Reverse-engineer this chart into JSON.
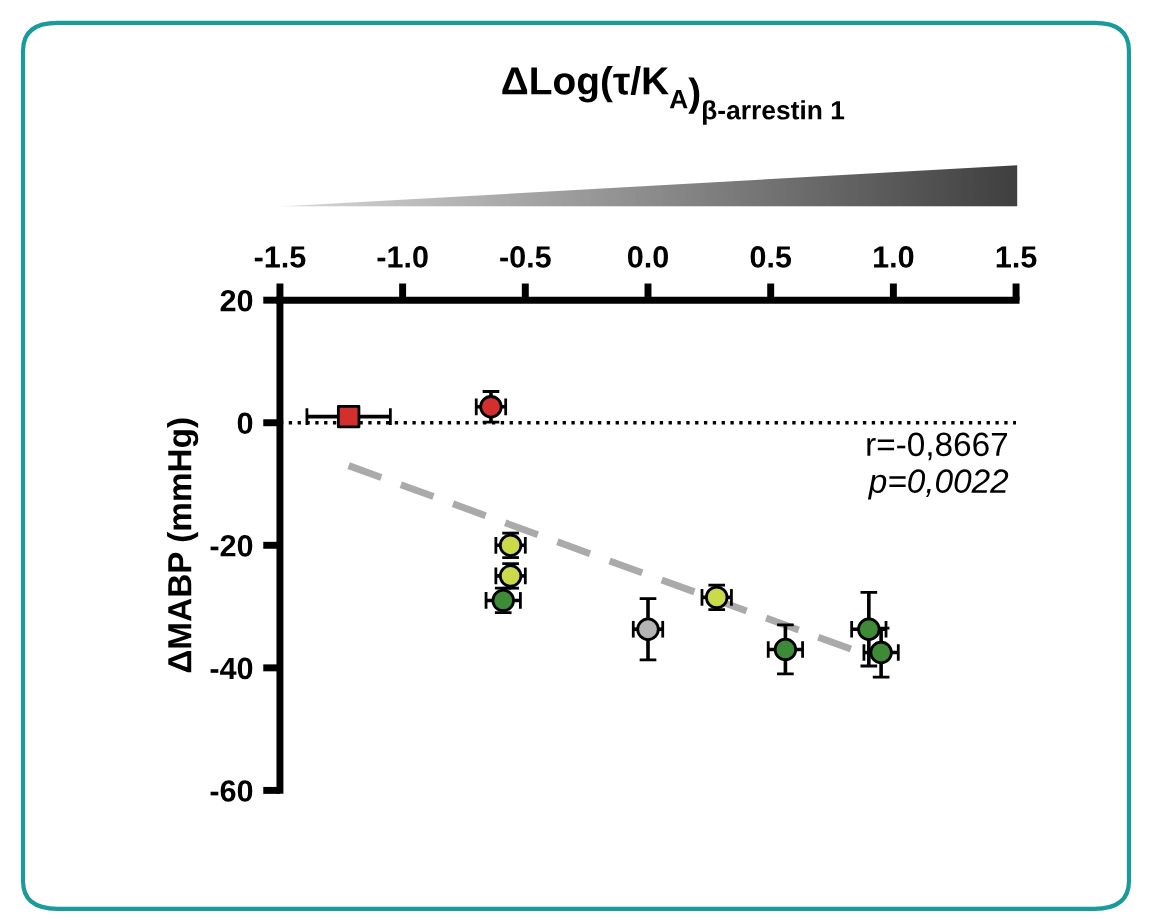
{
  "chart_data": {
    "type": "scatter",
    "xlabel": "ΔLog(τ/K$_{A}$)$_{β-arrestin 1}$",
    "ylabel": "ΔMABP (mmHg)",
    "xlim": [
      -1.5,
      1.5
    ],
    "ylim": [
      -60,
      20
    ],
    "xticks": [
      -1.5,
      {
        "value": -1.0,
        "label": "-1.0"
      },
      -0.5,
      {
        "value": 0.0,
        "label": "0.0"
      },
      0.5,
      {
        "value": 1.0,
        "label": "1.0"
      },
      1.5
    ],
    "yticks": [
      20,
      0,
      -20,
      -40,
      -60
    ],
    "grid": false,
    "legend": false,
    "ref_lines": [
      {
        "axis": "y",
        "value": 0,
        "color": "#000000",
        "line_style": "dotted"
      }
    ],
    "annotations": [
      "r=-0,8667",
      "p=0,0022"
    ],
    "series": [
      {
        "type": "scatter",
        "marker": "square",
        "color": "#d42f2f",
        "x": [
          -1.22
        ],
        "values": [
          1
        ],
        "errors": [
          1.5
        ],
        "xerrors": [
          0.17
        ]
      },
      {
        "type": "scatter",
        "marker": "circle",
        "color": "#d42f2f",
        "x": [
          -0.64
        ],
        "values": [
          2.6
        ],
        "errors": [
          2.5
        ],
        "xerrors": [
          0.06
        ]
      },
      {
        "type": "scatter",
        "marker": "circle",
        "color": "#c9da4a",
        "x": [
          -0.56,
          -0.56,
          0.28
        ],
        "values": [
          -20,
          -25,
          -28.5
        ],
        "errors": [
          2,
          2,
          2
        ],
        "xerrors": [
          0.06,
          0.06,
          0.06
        ]
      },
      {
        "type": "scatter",
        "marker": "circle",
        "color": "#3d8a37",
        "x": [
          -0.59,
          0.56,
          0.9,
          0.95
        ],
        "values": [
          -29,
          -37,
          -33.7,
          -37.5
        ],
        "errors": [
          2,
          4,
          6,
          4
        ],
        "xerrors": [
          0.07,
          0.07,
          0.07,
          0.07
        ]
      },
      {
        "type": "scatter",
        "marker": "circle",
        "color": "#b4b4b4",
        "x": [
          0.0
        ],
        "values": [
          -33.7
        ],
        "errors": [
          5
        ],
        "xerrors": [
          0.06
        ]
      },
      {
        "type": "line",
        "line_style": "dashed",
        "marker": "none",
        "color": "#aaaaaa",
        "x": [
          -1.22,
          0.9
        ],
        "values": [
          -7,
          -38
        ]
      }
    ]
  }
}
